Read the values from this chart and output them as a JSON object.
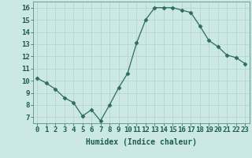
{
  "x": [
    0,
    1,
    2,
    3,
    4,
    5,
    6,
    7,
    8,
    9,
    10,
    11,
    12,
    13,
    14,
    15,
    16,
    17,
    18,
    19,
    20,
    21,
    22,
    23
  ],
  "y": [
    10.2,
    9.8,
    9.3,
    8.6,
    8.2,
    7.1,
    7.6,
    6.7,
    8.0,
    9.4,
    10.6,
    13.1,
    15.0,
    16.0,
    16.0,
    16.0,
    15.8,
    15.6,
    14.5,
    13.3,
    12.8,
    12.1,
    11.9,
    11.4
  ],
  "line_color": "#2d6b5e",
  "marker": "D",
  "marker_size": 2.5,
  "bg_color": "#cce8e4",
  "grid_color": "#b8d4d0",
  "xlabel": "Humidex (Indice chaleur)",
  "xlim": [
    -0.5,
    23.5
  ],
  "ylim": [
    6.5,
    16.5
  ],
  "xtick_labels": [
    "0",
    "1",
    "2",
    "3",
    "4",
    "5",
    "6",
    "7",
    "8",
    "9",
    "10",
    "11",
    "12",
    "13",
    "14",
    "15",
    "16",
    "17",
    "18",
    "19",
    "20",
    "21",
    "22",
    "23"
  ],
  "ytick_values": [
    7,
    8,
    9,
    10,
    11,
    12,
    13,
    14,
    15,
    16
  ],
  "xlabel_fontsize": 7,
  "tick_fontsize": 6.5
}
